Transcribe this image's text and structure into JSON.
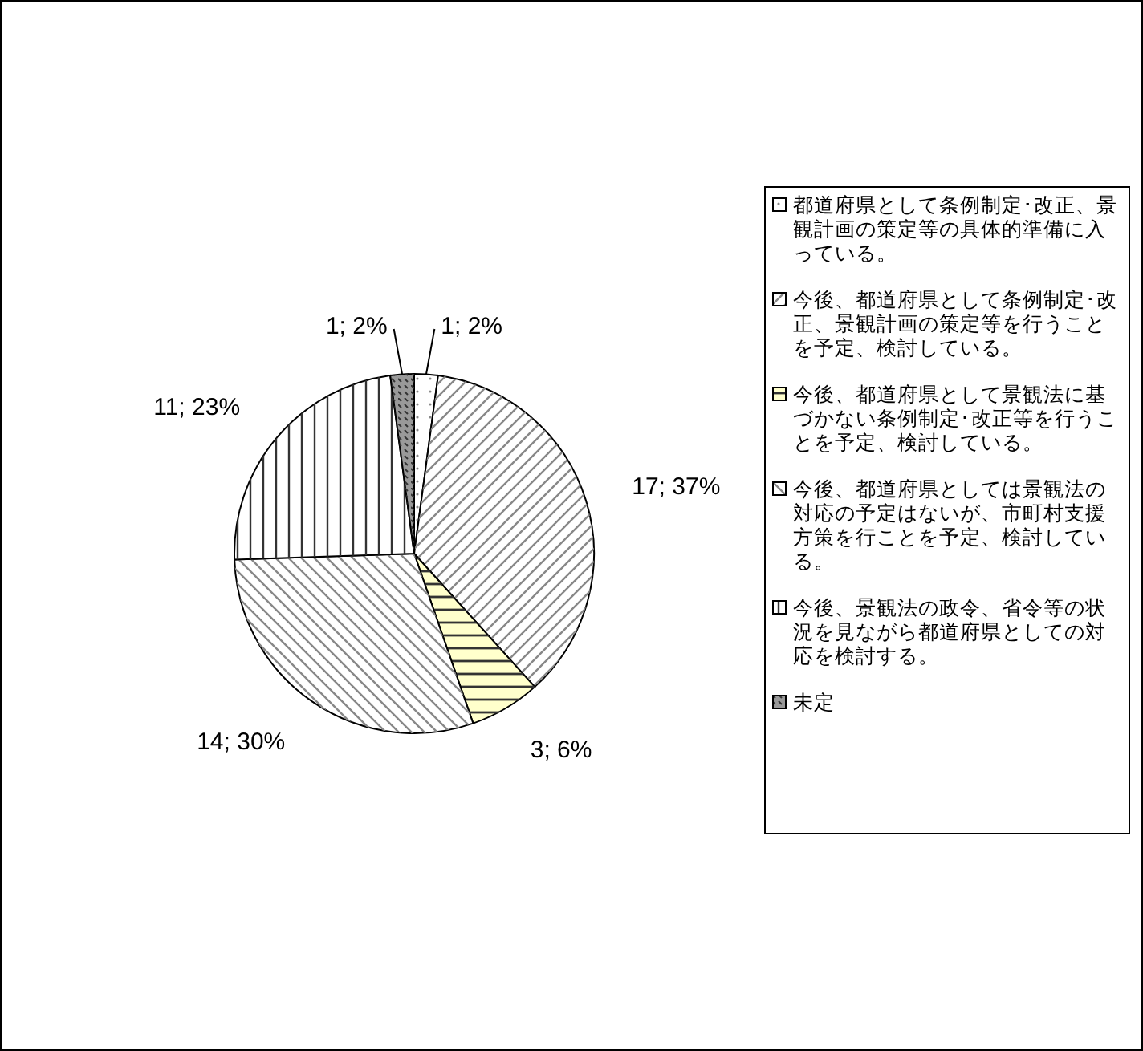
{
  "chart_data": {
    "type": "pie",
    "categories": [
      "都道府県として条例制定･改正、景観計画の策定等の具体的準備に入っている。",
      "今後、都道府県として条例制定･改正、景観計画の策定等を行うことを予定、検討している。",
      "今後、都道府県として景観法に基づかない条例制定･改正等を行うことを予定、検討している。",
      "今後、都道府県としては景観法の対応の予定はないが、市町村支援方策を行ことを予定、検討している。",
      "今後、景観法の政令、省令等の状況を見ながら都道府県としての対応を検討する。",
      "未定"
    ],
    "values": [
      1,
      17,
      3,
      14,
      11,
      1
    ],
    "colors": [
      "#ffffff",
      "#ffffff",
      "#ffffcc",
      "#ffffff",
      "#ffffff",
      "#999999"
    ],
    "value_labels": [
      "1; 2%",
      "17; 37%",
      "3; 6%",
      "14; 30%",
      "11; 23%",
      "1; 2%"
    ],
    "legend": "right"
  }
}
